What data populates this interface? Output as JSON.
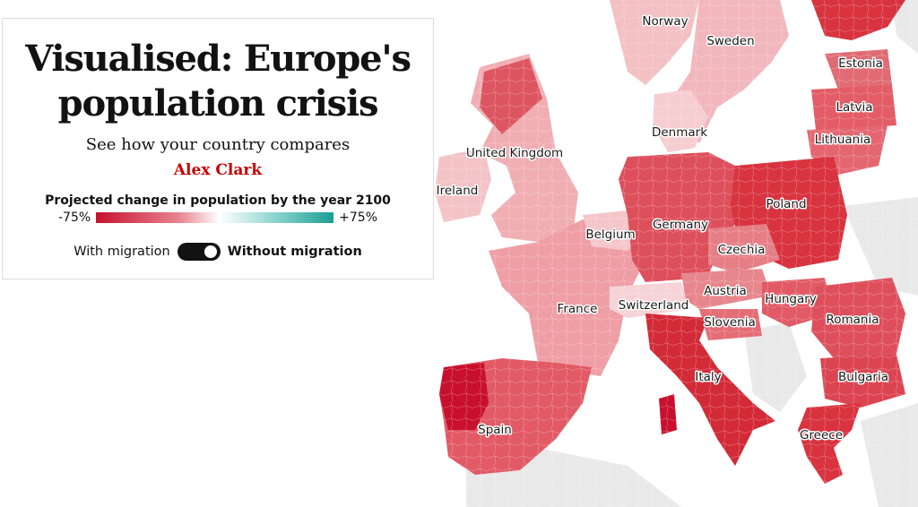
{
  "article": {
    "title": "Visualised: Europe's population crisis",
    "title_line1": "Visualised: Europe's",
    "title_line2": "population crisis",
    "standfirst": "See how your country compares",
    "byline": "Alex Clark"
  },
  "legend": {
    "title": "Projected change in population by the year 2100",
    "min_label": "-75%",
    "max_label": "+75%",
    "colors": {
      "low": "#c8102e",
      "mid": "#ffffff",
      "high": "#1a9e95"
    }
  },
  "toggle": {
    "left_label": "With migration",
    "right_label": "Without migration",
    "selected": "Without migration"
  },
  "map": {
    "countries": [
      {
        "name": "Norway",
        "key": "norway"
      },
      {
        "name": "Sweden",
        "key": "sweden"
      },
      {
        "name": "Estonia",
        "key": "estonia"
      },
      {
        "name": "Latvia",
        "key": "latvia"
      },
      {
        "name": "Lithuania",
        "key": "lithuania"
      },
      {
        "name": "Denmark",
        "key": "denmark"
      },
      {
        "name": "United Kingdom",
        "key": "uk"
      },
      {
        "name": "Ireland",
        "key": "ireland"
      },
      {
        "name": "Poland",
        "key": "poland"
      },
      {
        "name": "Germany",
        "key": "germany"
      },
      {
        "name": "Belgium",
        "key": "belgium"
      },
      {
        "name": "Czechia",
        "key": "czechia"
      },
      {
        "name": "Austria",
        "key": "austria"
      },
      {
        "name": "Hungary",
        "key": "hungary"
      },
      {
        "name": "France",
        "key": "france"
      },
      {
        "name": "Switzerland",
        "key": "switzerland"
      },
      {
        "name": "Slovenia",
        "key": "slovenia"
      },
      {
        "name": "Romania",
        "key": "romania"
      },
      {
        "name": "Italy",
        "key": "italy"
      },
      {
        "name": "Bulgaria",
        "key": "bulgaria"
      },
      {
        "name": "Spain",
        "key": "spain"
      },
      {
        "name": "Greece",
        "key": "greece"
      }
    ]
  }
}
